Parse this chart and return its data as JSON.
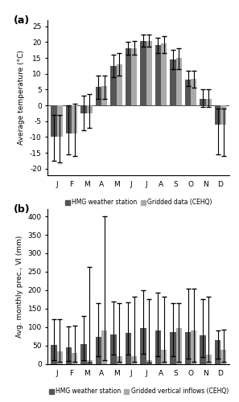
{
  "months": [
    "J",
    "F",
    "M",
    "A",
    "M",
    "J",
    "J",
    "A",
    "S",
    "O",
    "N",
    "D"
  ],
  "temp_hmg": [
    -10.0,
    -9.0,
    -2.5,
    5.8,
    12.5,
    18.0,
    20.5,
    19.0,
    14.5,
    8.2,
    2.0,
    -6.0
  ],
  "temp_cehq": [
    -10.0,
    -9.0,
    -2.5,
    6.0,
    13.0,
    18.0,
    20.5,
    19.5,
    15.0,
    8.5,
    2.0,
    -6.0
  ],
  "temp_hmg_min": [
    -17.5,
    -15.5,
    -8.0,
    2.0,
    9.0,
    16.0,
    18.5,
    16.5,
    11.5,
    6.0,
    -0.5,
    -15.5
  ],
  "temp_hmg_max": [
    -3.0,
    0.0,
    3.0,
    9.5,
    16.0,
    20.0,
    22.5,
    21.5,
    17.5,
    11.0,
    5.0,
    -1.0
  ],
  "temp_cehq_min": [
    -18.0,
    -16.0,
    -7.0,
    2.0,
    9.5,
    16.0,
    18.5,
    16.5,
    11.5,
    5.5,
    -0.5,
    -16.0
  ],
  "temp_cehq_max": [
    -3.0,
    0.5,
    3.5,
    9.5,
    16.5,
    20.5,
    22.5,
    22.0,
    18.0,
    11.0,
    5.0,
    -1.0
  ],
  "prec_hmg": [
    52,
    45,
    53,
    73,
    80,
    83,
    98,
    90,
    87,
    87,
    78,
    65
  ],
  "prec_cehq": [
    33,
    30,
    10,
    90,
    20,
    20,
    10,
    38,
    97,
    90,
    25,
    38
  ],
  "prec_hmg_min": [
    10,
    8,
    10,
    20,
    25,
    25,
    28,
    20,
    20,
    15,
    18,
    15
  ],
  "prec_hmg_max": [
    122,
    102,
    130,
    165,
    170,
    168,
    200,
    193,
    165,
    205,
    175,
    90
  ],
  "prec_cehq_min": [
    5,
    5,
    3,
    10,
    5,
    5,
    3,
    5,
    5,
    5,
    5,
    5
  ],
  "prec_cehq_max": [
    122,
    103,
    263,
    400,
    165,
    183,
    175,
    183,
    165,
    205,
    183,
    93
  ],
  "color_hmg": "#555555",
  "color_cehq": "#aaaaaa",
  "bar_width": 0.38,
  "temp_ylabel": "Average temperature (°C)",
  "temp_ylim": [
    -22,
    27
  ],
  "temp_yticks": [
    -20,
    -15,
    -10,
    -5,
    0,
    5,
    10,
    15,
    20,
    25
  ],
  "prec_ylabel": "Avg. monthly prec., VI (mm)",
  "prec_ylim": [
    0,
    420
  ],
  "prec_yticks": [
    0,
    50,
    100,
    150,
    200,
    250,
    300,
    350,
    400
  ],
  "legend_a_labels": [
    "HMG weather station",
    "Gridded data (CEHQ)"
  ],
  "legend_b_labels": [
    "HMG weather station",
    "Gridded vertical inflows (CEHQ)"
  ],
  "panel_a_label": "(a)",
  "panel_b_label": "(b)"
}
